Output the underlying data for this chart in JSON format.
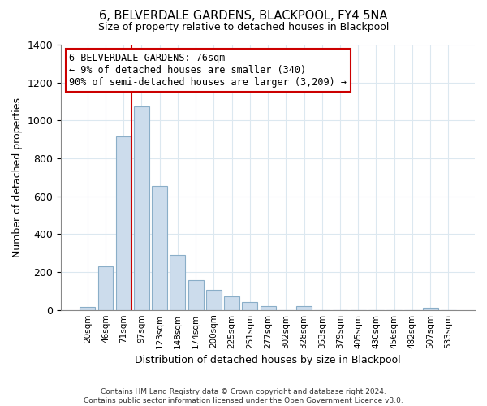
{
  "title": "6, BELVERDALE GARDENS, BLACKPOOL, FY4 5NA",
  "subtitle": "Size of property relative to detached houses in Blackpool",
  "xlabel": "Distribution of detached houses by size in Blackpool",
  "ylabel": "Number of detached properties",
  "bar_labels": [
    "20sqm",
    "46sqm",
    "71sqm",
    "97sqm",
    "123sqm",
    "148sqm",
    "174sqm",
    "200sqm",
    "225sqm",
    "251sqm",
    "277sqm",
    "302sqm",
    "328sqm",
    "353sqm",
    "379sqm",
    "405sqm",
    "430sqm",
    "456sqm",
    "482sqm",
    "507sqm",
    "533sqm"
  ],
  "bar_values": [
    15,
    228,
    915,
    1075,
    655,
    290,
    158,
    107,
    70,
    40,
    22,
    0,
    18,
    0,
    0,
    0,
    0,
    0,
    0,
    10,
    0
  ],
  "bar_color": "#ccdcec",
  "bar_edge_color": "#8aaec8",
  "vline_color": "#cc0000",
  "vline_index": 2,
  "ylim": [
    0,
    1400
  ],
  "yticks": [
    0,
    200,
    400,
    600,
    800,
    1000,
    1200,
    1400
  ],
  "annotation_title": "6 BELVERDALE GARDENS: 76sqm",
  "annotation_line1": "← 9% of detached houses are smaller (340)",
  "annotation_line2": "90% of semi-detached houses are larger (3,209) →",
  "annotation_box_color": "#ffffff",
  "annotation_box_edge": "#cc0000",
  "footer_line1": "Contains HM Land Registry data © Crown copyright and database right 2024.",
  "footer_line2": "Contains public sector information licensed under the Open Government Licence v3.0.",
  "background_color": "#ffffff",
  "grid_color": "#dce8f0"
}
